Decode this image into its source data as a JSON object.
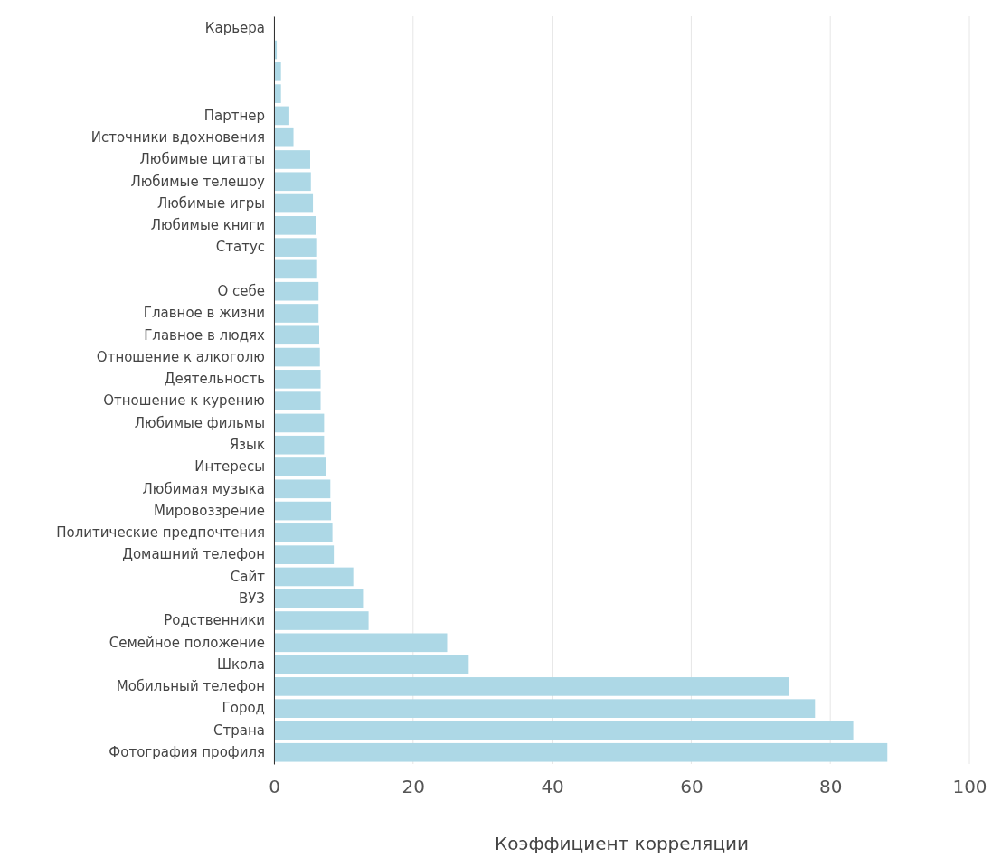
{
  "chart_data": {
    "type": "bar",
    "orientation": "horizontal",
    "xlabel": "Коэффициент корреляции",
    "categories": [
      "Карьера",
      null,
      null,
      null,
      "Партнер",
      "Источники вдохновения",
      "Любимые цитаты",
      "Любимые телешоу",
      "Любимые игры",
      "Любимые книги",
      "Статус",
      null,
      "О себе",
      "Главное в жизни",
      "Главное в людях",
      "Отношение к алкоголю",
      "Деятельность",
      "Отношение к курению",
      "Любимые фильмы",
      "Язык",
      "Интересы",
      "Любимая музыка",
      "Мировоззрение",
      "Политические предпочтения",
      "Домашний телефон",
      "Сайт",
      "ВУЗ",
      "Родственники",
      "Семейное положение",
      "Школа",
      "Мобильный телефон",
      "Город",
      "Страна",
      "Фотография профиля"
    ],
    "values": [
      null,
      0.4,
      1.0,
      1.0,
      2.2,
      2.8,
      5.2,
      5.3,
      5.6,
      6.0,
      6.2,
      6.2,
      6.4,
      6.4,
      6.5,
      6.6,
      6.7,
      6.7,
      7.2,
      7.2,
      7.5,
      8.1,
      8.2,
      8.4,
      8.6,
      11.4,
      12.8,
      13.6,
      24.9,
      28.0,
      74.0,
      77.8,
      83.3,
      88.2
    ],
    "color": "#add8e6",
    "xlim": [
      0,
      100
    ],
    "xticks": [
      0,
      20,
      40,
      60,
      80,
      100
    ],
    "grid": "x"
  }
}
